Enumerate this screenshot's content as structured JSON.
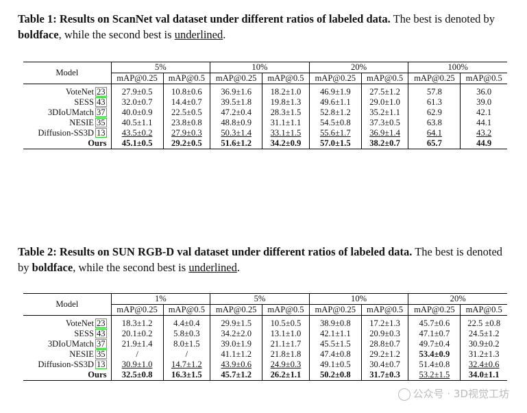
{
  "table1": {
    "caption_label": "Table 1: Results on ScanNet val dataset under different ratios of labeled data.",
    "caption_text_a": " The best is denoted by ",
    "caption_bold_word": "boldface",
    "caption_text_b": ", while the second best is ",
    "caption_underlined_word": "underlined",
    "caption_end": ".",
    "model_header": "Model",
    "groups": [
      "5%",
      "10%",
      "20%",
      "100%"
    ],
    "metrics": [
      "mAP@0.25",
      "mAP@0.5"
    ],
    "rows": [
      {
        "model": "VoteNet",
        "cite": "23",
        "cells": [
          "27.9±0.5",
          "10.8±0.6",
          "36.9±1.6",
          "18.2±1.0",
          "46.9±1.9",
          "27.5±1.2",
          "57.8",
          "36.0"
        ]
      },
      {
        "model": "SESS",
        "cite": "43",
        "cells": [
          "32.0±0.7",
          "14.4±0.7",
          "39.5±1.8",
          "19.8±1.3",
          "49.6±1.1",
          "29.0±1.0",
          "61.3",
          "39.0"
        ]
      },
      {
        "model": "3DIoUMatch",
        "cite": "37",
        "cells": [
          "40.0±0.9",
          "22.5±0.5",
          "47.2±0.4",
          "28.3±1.5",
          "52.8±1.2",
          "35.2±1.1",
          "62.9",
          "42.1"
        ]
      },
      {
        "model": "NESIE",
        "cite": "35",
        "cells": [
          "40.5±1.1",
          "23.8±0.8",
          "48.8±0.9",
          "31.1±1.1",
          "54.5±0.8",
          "37.3±0.5",
          "63.8",
          "44.1"
        ]
      },
      {
        "model": "Diffusion-SS3D",
        "cite": "13",
        "cells": [
          "43.5±0.2",
          "27.9±0.3",
          "50.3±1.4",
          "33.1±1.5",
          "55.6±1.7",
          "36.9±1.4",
          "64.1",
          "43.2"
        ]
      },
      {
        "model": "Ours",
        "cite": "",
        "cells": [
          "45.1±0.5",
          "29.2±0.5",
          "51.6±1.2",
          "34.2±0.9",
          "57.0±1.5",
          "38.2±0.7",
          "65.7",
          "44.9"
        ]
      }
    ]
  },
  "table2": {
    "caption_label": "Table 2: Results on SUN RGB-D val dataset under different ratios of labeled data.",
    "caption_text_a": " The best is denoted by ",
    "caption_bold_word": "boldface",
    "caption_text_b": ", while the second best is ",
    "caption_underlined_word": "underlined",
    "caption_end": ".",
    "model_header": "Model",
    "groups": [
      "1%",
      "5%",
      "10%",
      "20%"
    ],
    "metrics": [
      "mAP@0.25",
      "mAP@0.5"
    ],
    "rows": [
      {
        "model": "VoteNet",
        "cite": "23",
        "cells": [
          "18.3±1.2",
          "4.4±0.4",
          "29.9±1.5",
          "10.5±0.5",
          "38.9±0.8",
          "17.2±1.3",
          "45.7±0.6",
          "22.5 ±0.8"
        ]
      },
      {
        "model": "SESS",
        "cite": "43",
        "cells": [
          "20.1±0.2",
          "5.8±0.3",
          "34.2±2.0",
          "13.1±1.0",
          "42.1±1.1",
          "20.9±0.3",
          "47.1±0.7",
          "24.5±1.2"
        ]
      },
      {
        "model": "3DIoUMatch",
        "cite": "37",
        "cells": [
          "21.9±1.4",
          "8.0±1.5",
          "39.0±1.9",
          "21.1±1.7",
          "45.5±1.5",
          "28.8±0.7",
          "49.7±0.4",
          "30.9±0.2"
        ]
      },
      {
        "model": "NESIE",
        "cite": "35",
        "cells": [
          "/",
          "/",
          "41.1±1.2",
          "21.8±1.8",
          "47.4±0.8",
          "29.2±1.2",
          "53.4±0.9",
          "31.2±1.3"
        ]
      },
      {
        "model": "Diffusion-SS3D",
        "cite": "13",
        "cells": [
          "30.9±1.0",
          "14.7±1.2",
          "43.9±0.6",
          "24.9±0.3",
          "49.1±0.5",
          "30.4±0.7",
          "51.4±0.8",
          "32.4±0.6"
        ]
      },
      {
        "model": "Ours",
        "cite": "",
        "cells": [
          "32.5±0.8",
          "16.3±1.5",
          "45.7±1.2",
          "26.2±1.1",
          "50.2±0.8",
          "31.7±0.3",
          "53.2±1.5",
          "34.0±1.1"
        ]
      }
    ]
  },
  "watermark": "公众号 · 3D视觉工坊"
}
